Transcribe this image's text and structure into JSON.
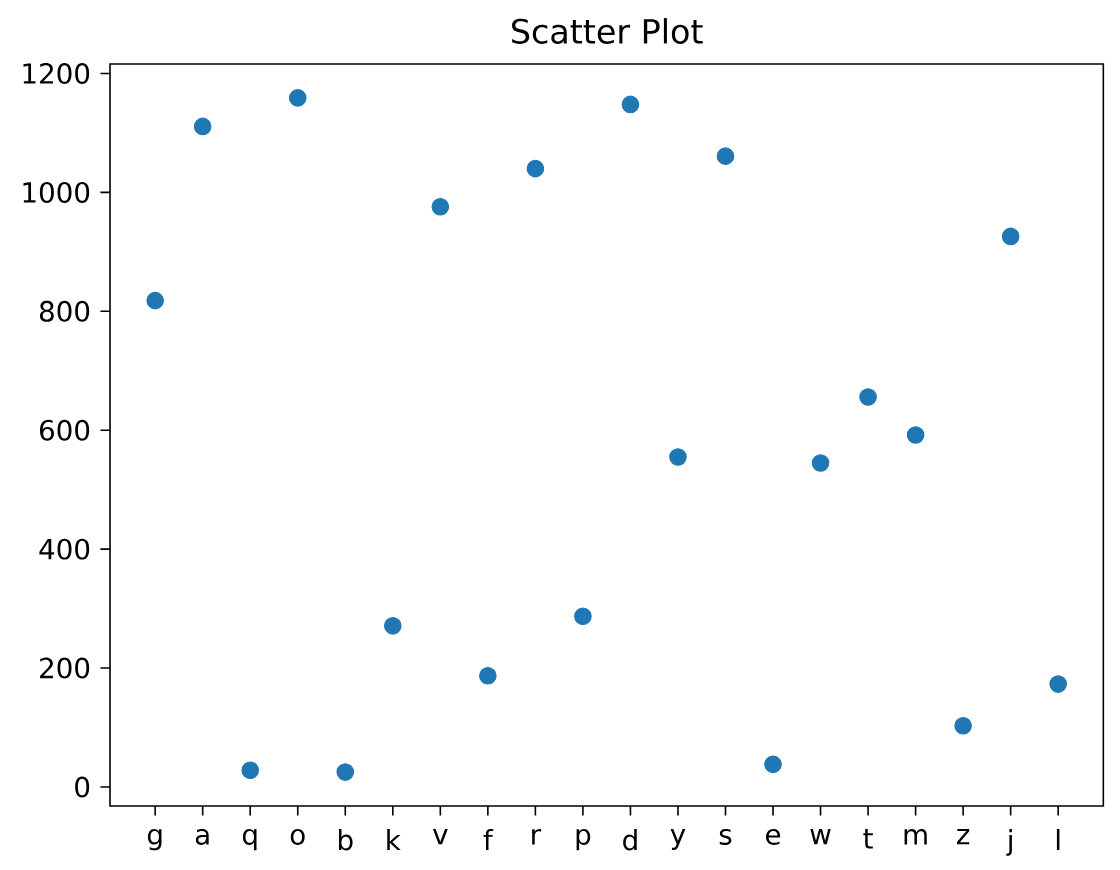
{
  "chart_data": {
    "type": "scatter",
    "title": "Scatter Plot",
    "categories": [
      "g",
      "a",
      "q",
      "o",
      "b",
      "k",
      "v",
      "f",
      "r",
      "p",
      "d",
      "y",
      "s",
      "e",
      "w",
      "t",
      "m",
      "z",
      "j",
      "l"
    ],
    "values": [
      818,
      1111,
      28,
      1159,
      25,
      271,
      976,
      187,
      1040,
      287,
      1148,
      555,
      1061,
      38,
      545,
      656,
      592,
      103,
      926,
      173
    ],
    "color": "#1f77b4",
    "marker": "circle",
    "ylim": [
      -32,
      1216
    ],
    "yticks": [
      0,
      200,
      400,
      600,
      800,
      1000,
      1200
    ]
  }
}
